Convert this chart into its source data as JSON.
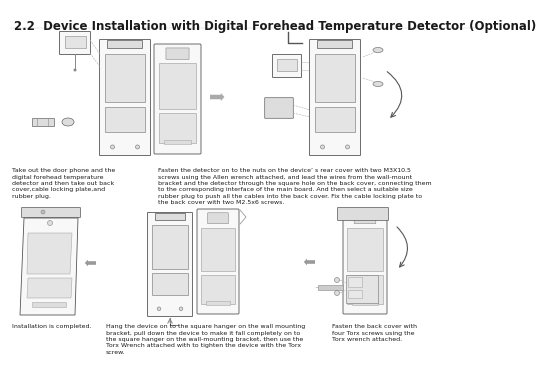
{
  "title": "2.2  Device Installation with Digital Forehead Temperature Detector (Optional)",
  "title_fontsize": 8.5,
  "bg_color": "#ffffff",
  "text_color": "#1a1a1a",
  "body_fontsize": 4.5,
  "caption1_lines": [
    "Take out the door phone and the",
    "digital forehead temperature",
    "detector and then take out back",
    "cover,cable locking plate,and",
    "rubber plug."
  ],
  "caption2_lines": [
    "Fasten the detector on to the nuts on the device’ s rear cover with two M3X10.5",
    "screws using the Allen wrench attached, and lead the wires from the wall-mount",
    "bracket and the detector through the square hole on the back cover, connecting them",
    "to the corresponding interface of the main board. And then select a suitable size",
    "rubber plug to push all the cables into the back cover. Fix the cable locking plate to",
    "the back cover with two M2.5x6 screws."
  ],
  "caption3a": "Installation is completed.",
  "caption3b_lines": [
    "Hang the device on to the square hanger on the wall mounting",
    "bracket, pull down the device to make it fall completely on to",
    "the square hanger on the wall-mounting bracket, then use the",
    "Torx Wrench attached with to tighten the device with the Torx",
    "screw."
  ],
  "caption3c_lines": [
    "Fasten the back cover with",
    "four Torx screws using the",
    "Torx wrench attached."
  ],
  "edge_color": "#555555",
  "fill_color": "#f0f0f0",
  "fill_light": "#f8f8f8",
  "fill_inner": "#e4e4e4",
  "fill_dark": "#dddddd",
  "arrow_color": "#888888",
  "dashed_color": "#aaaaaa"
}
